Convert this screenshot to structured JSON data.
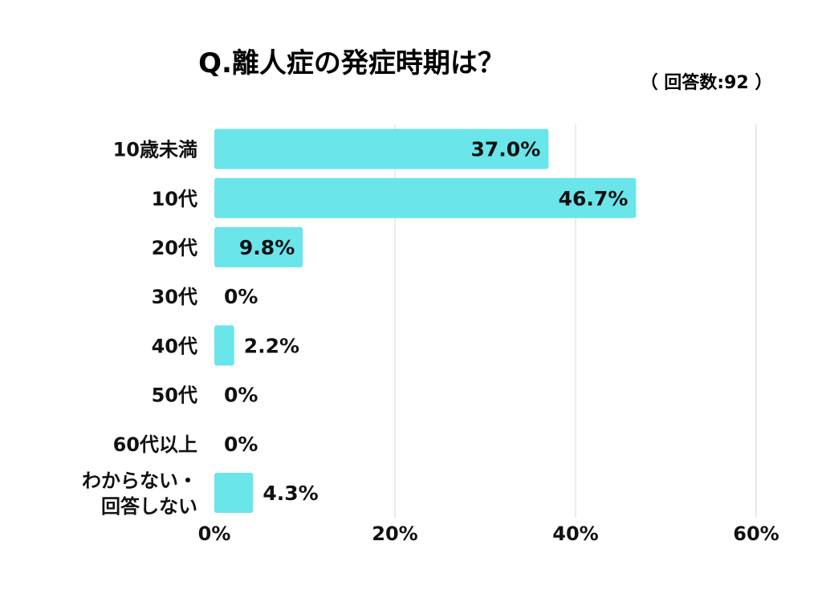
{
  "chart_data": {
    "type": "bar",
    "orientation": "horizontal",
    "title": "Q.離人症の発症時期は？",
    "note": "（ 回答数:92 ）",
    "categories": [
      [
        "10歳未満"
      ],
      [
        "10代"
      ],
      [
        "20代"
      ],
      [
        "30代"
      ],
      [
        "40代"
      ],
      [
        "50代"
      ],
      [
        "60代以上"
      ],
      [
        "わからない・",
        "回答しない"
      ]
    ],
    "values": [
      37.0,
      46.7,
      9.8,
      0,
      2.2,
      0,
      0,
      4.3
    ],
    "data_labels": [
      "37.0%",
      "46.7%",
      "9.8%",
      "0%",
      "2.2%",
      "0%",
      "0%",
      "4.3%"
    ],
    "x_ticks": [
      "0%",
      "20%",
      "40%",
      "60%"
    ],
    "xlim": [
      0,
      60
    ],
    "grid": true,
    "legend": "none",
    "bar_color": "#6ae5ea",
    "grid_color": "#d4d4d4",
    "text_color": "#111111"
  }
}
